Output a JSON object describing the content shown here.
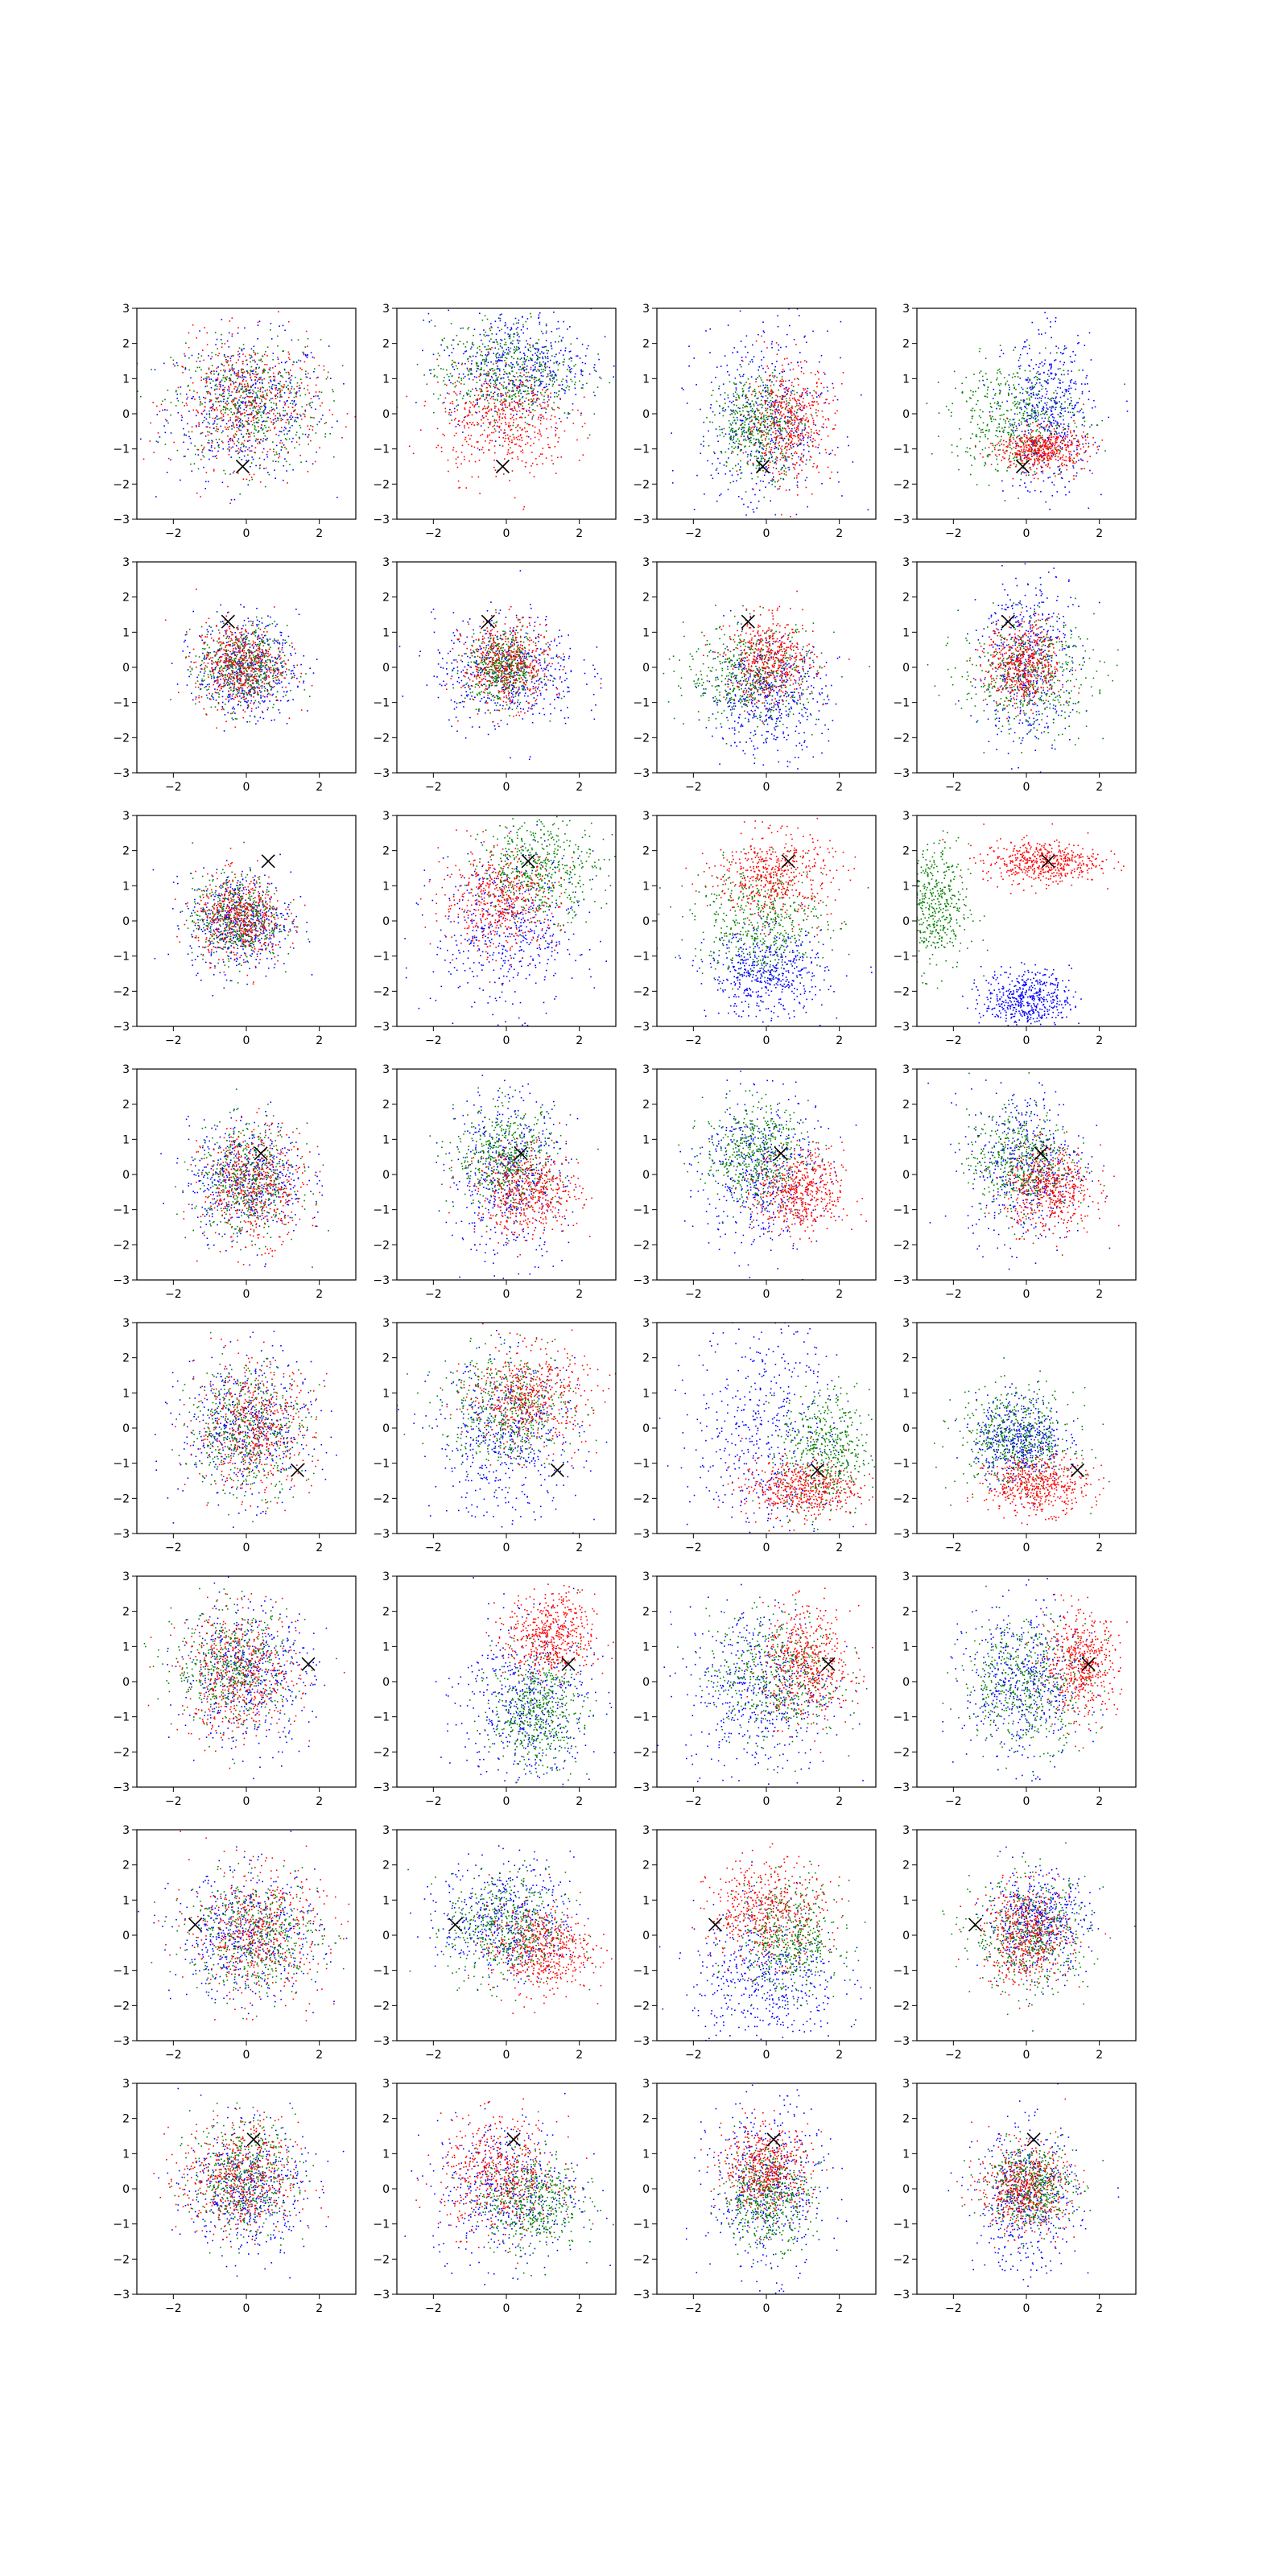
{
  "figure": {
    "rows": 8,
    "cols": 4,
    "colors": {
      "red": "#ff0000",
      "green": "#008000",
      "blue": "#0000ff",
      "marker": "#000000"
    }
  },
  "chart_data": {
    "type": "scatter",
    "layout": "grid 8x4",
    "xlim": [
      -3,
      3
    ],
    "ylim": [
      -3,
      3
    ],
    "xticks": [
      "−2",
      "0",
      "2"
    ],
    "yticks": [
      "3",
      "2",
      "1",
      "0",
      "−1",
      "−2",
      "−3"
    ],
    "xtick_values": [
      -2,
      0,
      2
    ],
    "ytick_values": [
      3,
      2,
      1,
      0,
      -1,
      -2,
      -3
    ],
    "grid": false,
    "legend": "none",
    "marker_style": "x",
    "points_per_series": 500,
    "row_markers": [
      [
        -0.1,
        -1.5
      ],
      [
        -0.5,
        1.3
      ],
      [
        0.6,
        1.7
      ],
      [
        0.4,
        0.6
      ],
      [
        1.4,
        -1.2
      ],
      [
        1.7,
        0.5
      ],
      [
        -1.4,
        0.3
      ],
      [
        0.2,
        1.4
      ]
    ],
    "panels": [
      [
        {
          "red": [
            0.0,
            0.3,
            1.0,
            0.9
          ],
          "green": [
            0.0,
            0.3,
            1.0,
            0.9
          ],
          "blue": [
            0.0,
            0.2,
            1.1,
            1.0
          ]
        },
        {
          "red": [
            -0.1,
            -0.2,
            0.9,
            0.8
          ],
          "green": [
            0.0,
            1.2,
            1.0,
            0.7
          ],
          "blue": [
            0.3,
            1.4,
            1.0,
            0.8
          ]
        },
        {
          "red": [
            0.6,
            -0.2,
            0.6,
            0.8
          ],
          "green": [
            -0.2,
            -0.3,
            0.6,
            0.7
          ],
          "blue": [
            -0.1,
            -0.3,
            0.9,
            1.4
          ]
        },
        {
          "red": [
            0.4,
            -1.0,
            0.6,
            0.3
          ],
          "green": [
            -0.3,
            -0.1,
            0.9,
            0.8
          ],
          "blue": [
            0.6,
            0.0,
            0.6,
            1.1
          ]
        }
      ],
      [
        {
          "red": [
            -0.2,
            0.1,
            0.6,
            0.6
          ],
          "green": [
            -0.1,
            0.0,
            0.6,
            0.6
          ],
          "blue": [
            0.0,
            0.0,
            0.7,
            0.7
          ]
        },
        {
          "red": [
            0.0,
            0.1,
            0.6,
            0.6
          ],
          "green": [
            -0.1,
            0.0,
            0.5,
            0.5
          ],
          "blue": [
            0.0,
            -0.1,
            1.0,
            0.8
          ]
        },
        {
          "red": [
            0.1,
            0.2,
            0.6,
            0.6
          ],
          "green": [
            -0.4,
            -0.2,
            0.9,
            0.7
          ],
          "blue": [
            0.0,
            -0.8,
            0.8,
            0.8
          ]
        },
        {
          "red": [
            -0.1,
            0.1,
            0.5,
            0.6
          ],
          "green": [
            0.0,
            -0.2,
            0.9,
            0.8
          ],
          "blue": [
            0.0,
            0.3,
            0.6,
            1.3
          ]
        }
      ],
      [
        {
          "red": [
            -0.2,
            0.1,
            0.6,
            0.6
          ],
          "green": [
            -0.3,
            0.1,
            0.6,
            0.6
          ],
          "blue": [
            -0.2,
            0.0,
            0.7,
            0.7
          ]
        },
        {
          "red": [
            -0.2,
            0.6,
            0.8,
            0.7
          ],
          "green": [
            0.9,
            1.5,
            0.8,
            0.7
          ],
          "blue": [
            0.0,
            -0.3,
            1.0,
            1.1
          ]
        },
        {
          "red": [
            0.2,
            1.3,
            0.8,
            0.6
          ],
          "green": [
            -0.2,
            0.0,
            0.9,
            0.8
          ],
          "blue": [
            0.0,
            -1.5,
            0.8,
            0.6
          ]
        },
        {
          "red": [
            0.4,
            1.7,
            0.8,
            0.3
          ],
          "green": [
            -2.6,
            0.4,
            0.5,
            0.9
          ],
          "blue": [
            0.0,
            -2.2,
            0.6,
            0.4
          ]
        }
      ],
      [
        {
          "red": [
            0.2,
            -0.3,
            0.7,
            0.8
          ],
          "green": [
            0.0,
            -0.2,
            0.7,
            0.8
          ],
          "blue": [
            0.0,
            -0.1,
            0.8,
            0.8
          ]
        },
        {
          "red": [
            0.6,
            -0.5,
            0.7,
            0.6
          ],
          "green": [
            0.0,
            0.5,
            0.7,
            0.7
          ],
          "blue": [
            0.0,
            0.0,
            0.8,
            1.2
          ]
        },
        {
          "red": [
            0.9,
            -0.5,
            0.6,
            0.6
          ],
          "green": [
            -0.3,
            0.6,
            0.7,
            0.7
          ],
          "blue": [
            -0.2,
            0.1,
            0.8,
            1.1
          ]
        },
        {
          "red": [
            0.6,
            -0.4,
            0.6,
            0.6
          ],
          "green": [
            -0.2,
            0.4,
            0.7,
            0.7
          ],
          "blue": [
            0.0,
            0.3,
            0.8,
            1.1
          ]
        }
      ],
      [
        {
          "red": [
            0.2,
            0.0,
            0.8,
            0.9
          ],
          "green": [
            0.0,
            0.0,
            0.8,
            0.9
          ],
          "blue": [
            0.0,
            0.0,
            0.9,
            1.0
          ]
        },
        {
          "red": [
            0.6,
            0.9,
            0.8,
            0.7
          ],
          "green": [
            0.0,
            0.6,
            0.9,
            0.8
          ],
          "blue": [
            0.0,
            -0.3,
            1.0,
            1.1
          ]
        },
        {
          "red": [
            0.9,
            -1.7,
            0.8,
            0.4
          ],
          "green": [
            1.6,
            -0.7,
            0.6,
            0.9
          ],
          "blue": [
            0.0,
            0.0,
            1.0,
            1.6
          ]
        },
        {
          "red": [
            0.3,
            -1.6,
            0.7,
            0.4
          ],
          "green": [
            -0.3,
            -0.3,
            0.8,
            0.7
          ],
          "blue": [
            -0.2,
            -0.3,
            0.6,
            0.6
          ]
        }
      ],
      [
        {
          "red": [
            -0.2,
            0.2,
            0.8,
            0.9
          ],
          "green": [
            -0.4,
            0.4,
            0.8,
            0.8
          ],
          "blue": [
            0.0,
            0.2,
            0.9,
            1.0
          ]
        },
        {
          "red": [
            1.2,
            1.3,
            0.6,
            0.6
          ],
          "green": [
            0.8,
            -0.8,
            0.6,
            0.8
          ],
          "blue": [
            0.5,
            -0.6,
            0.9,
            1.2
          ]
        },
        {
          "red": [
            1.1,
            0.5,
            0.6,
            0.8
          ],
          "green": [
            0.2,
            0.2,
            0.9,
            0.9
          ],
          "blue": [
            -0.2,
            -0.2,
            1.0,
            1.2
          ]
        },
        {
          "red": [
            1.5,
            0.5,
            0.5,
            0.7
          ],
          "green": [
            0.0,
            0.0,
            0.9,
            0.9
          ],
          "blue": [
            -0.1,
            -0.1,
            0.8,
            1.1
          ]
        }
      ],
      [
        {
          "red": [
            0.3,
            0.1,
            0.9,
            0.9
          ],
          "green": [
            0.2,
            0.0,
            0.9,
            0.8
          ],
          "blue": [
            0.0,
            0.0,
            1.0,
            0.9
          ]
        },
        {
          "red": [
            0.9,
            -0.4,
            0.7,
            0.6
          ],
          "green": [
            0.0,
            0.2,
            0.8,
            0.8
          ],
          "blue": [
            0.0,
            0.5,
            0.9,
            0.8
          ]
        },
        {
          "red": [
            0.0,
            0.7,
            0.8,
            0.7
          ],
          "green": [
            0.6,
            -0.1,
            0.7,
            0.8
          ],
          "blue": [
            0.0,
            -1.2,
            1.0,
            1.0
          ]
        },
        {
          "red": [
            0.0,
            0.0,
            0.6,
            0.7
          ],
          "green": [
            0.1,
            0.0,
            0.8,
            0.8
          ],
          "blue": [
            0.3,
            0.4,
            0.7,
            0.7
          ]
        }
      ],
      [
        {
          "red": [
            -0.2,
            0.3,
            0.8,
            0.8
          ],
          "green": [
            -0.1,
            0.4,
            0.7,
            0.8
          ],
          "blue": [
            0.0,
            0.0,
            0.8,
            0.9
          ]
        },
        {
          "red": [
            -0.2,
            0.4,
            0.8,
            0.8
          ],
          "green": [
            0.6,
            -0.3,
            0.7,
            0.7
          ],
          "blue": [
            0.0,
            0.0,
            1.0,
            1.0
          ]
        },
        {
          "red": [
            0.0,
            0.6,
            0.6,
            0.6
          ],
          "green": [
            0.0,
            -0.2,
            0.6,
            0.7
          ],
          "blue": [
            0.0,
            0.0,
            0.8,
            1.2
          ]
        },
        {
          "red": [
            -0.1,
            0.0,
            0.6,
            0.6
          ],
          "green": [
            0.1,
            0.1,
            0.6,
            0.6
          ],
          "blue": [
            0.0,
            -0.3,
            0.7,
            1.0
          ]
        }
      ]
    ]
  }
}
